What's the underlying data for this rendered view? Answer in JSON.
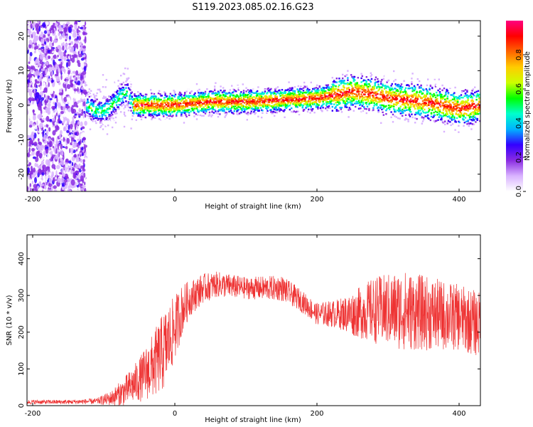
{
  "figure": {
    "title": "S119.2023.085.02.16.G23"
  },
  "chart_data": [
    {
      "type": "heatmap",
      "title": "",
      "xlabel": "Height of straight line (km)",
      "ylabel": "Frequency (Hz)",
      "xlim": [
        -208,
        430
      ],
      "ylim": [
        -25,
        24.5
      ],
      "xticks": [
        -200,
        0,
        200,
        400
      ],
      "yticks": [
        -20,
        -10,
        0,
        10,
        20
      ],
      "colorbar": {
        "label": "Normalized spectral amplitude",
        "range": [
          0,
          1
        ],
        "ticks": [
          0.0,
          0.2,
          0.4,
          0.6,
          0.8
        ],
        "colors": [
          "#ffffff",
          "#d9b3ff",
          "#8a2be2",
          "#3300ff",
          "#00b3ff",
          "#00ffcc",
          "#00ff00",
          "#ccff00",
          "#ffcc00",
          "#ff6600",
          "#ff0000",
          "#ff0080"
        ]
      },
      "ridge": {
        "x": [
          -125,
          -110,
          -95,
          -80,
          -68,
          -60,
          -45,
          -20,
          0,
          50,
          100,
          150,
          200,
          225,
          250,
          280,
          300,
          350,
          400,
          430
        ],
        "y": [
          0,
          -2,
          -1,
          2,
          4,
          0,
          0,
          0,
          0,
          1,
          1,
          1.5,
          2,
          3,
          4,
          3,
          2,
          1,
          -1,
          0
        ]
      },
      "noise_region": {
        "x": [
          -208,
          -125
        ]
      }
    },
    {
      "type": "line",
      "title": "",
      "xlabel": "Height of straight line (km)",
      "ylabel": "SNR (10 * v/v)",
      "xlim": [
        -208,
        430
      ],
      "ylim": [
        0,
        465
      ],
      "xticks": [
        -200,
        0,
        200,
        400
      ],
      "yticks": [
        0,
        100,
        200,
        300,
        400
      ],
      "series": [
        {
          "color": "#ee3333",
          "x": [
            -208,
            -150,
            -110,
            -90,
            -70,
            -50,
            -30,
            -15,
            0,
            10,
            20,
            40,
            60,
            100,
            150,
            175,
            200,
            230,
            250,
            280,
            320,
            360,
            400,
            430
          ],
          "mean": [
            10,
            10,
            12,
            20,
            40,
            70,
            110,
            150,
            210,
            260,
            290,
            320,
            330,
            320,
            320,
            290,
            250,
            250,
            250,
            260,
            260,
            250,
            240,
            220
          ],
          "spread": [
            6,
            6,
            8,
            20,
            40,
            60,
            90,
            110,
            90,
            70,
            50,
            40,
            35,
            30,
            35,
            30,
            30,
            40,
            60,
            90,
            110,
            100,
            90,
            90
          ]
        }
      ]
    }
  ]
}
